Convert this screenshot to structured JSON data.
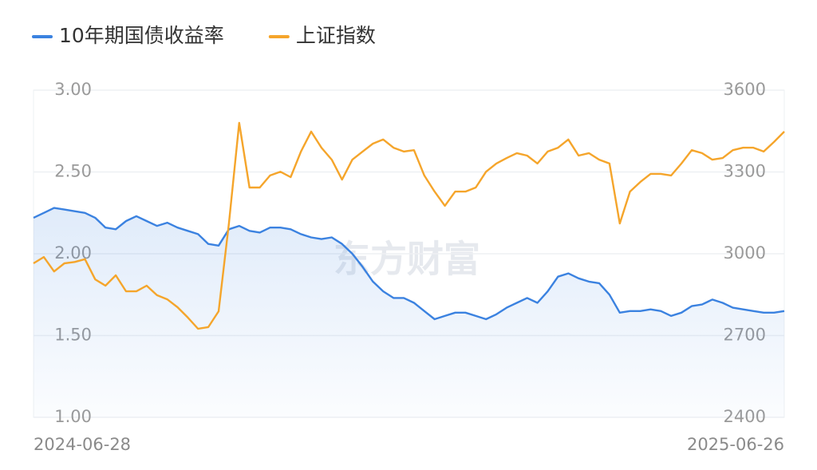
{
  "chart_data": {
    "type": "line",
    "watermark": "东方财富",
    "categories": [
      "2024-06-28",
      null,
      null,
      null,
      null,
      null,
      null,
      null,
      null,
      null,
      null,
      null,
      null,
      null,
      null,
      null,
      null,
      null,
      null,
      null,
      null,
      null,
      null,
      null,
      null,
      null,
      null,
      null,
      null,
      null,
      null,
      null,
      null,
      null,
      null,
      null,
      null,
      null,
      null,
      null,
      null,
      null,
      null,
      null,
      null,
      null,
      null,
      null,
      null,
      null,
      null,
      null,
      null,
      null,
      null,
      null,
      null,
      null,
      null,
      null,
      null,
      null,
      null,
      null,
      null,
      null,
      null,
      null,
      null,
      null,
      null,
      null,
      null,
      "2025-06-26"
    ],
    "series": [
      {
        "name": "10年期国债收益率",
        "color": "#3b82e0",
        "area": true,
        "values": [
          2.22,
          2.25,
          2.28,
          2.27,
          2.26,
          2.25,
          2.22,
          2.16,
          2.15,
          2.2,
          2.23,
          2.2,
          2.17,
          2.19,
          2.16,
          2.14,
          2.12,
          2.06,
          2.05,
          2.15,
          2.17,
          2.14,
          2.13,
          2.16,
          2.16,
          2.15,
          2.12,
          2.1,
          2.09,
          2.1,
          2.06,
          2.0,
          1.92,
          1.83,
          1.77,
          1.73,
          1.73,
          1.7,
          1.65,
          1.6,
          1.62,
          1.64,
          1.64,
          1.62,
          1.6,
          1.63,
          1.67,
          1.7,
          1.73,
          1.7,
          1.77,
          1.86,
          1.88,
          1.85,
          1.83,
          1.82,
          1.75,
          1.64,
          1.65,
          1.65,
          1.66,
          1.65,
          1.62,
          1.64,
          1.68,
          1.69,
          1.72,
          1.7,
          1.67,
          1.66,
          1.65,
          1.64,
          1.64,
          1.65
        ]
      },
      {
        "name": "上证指数",
        "color": "#f5a52b",
        "axis": "y2",
        "values": [
          2965,
          2988,
          2935,
          2965,
          2970,
          2980,
          2906,
          2883,
          2921,
          2862,
          2862,
          2883,
          2848,
          2833,
          2804,
          2766,
          2725,
          2731,
          2789,
          3111,
          3480,
          3243,
          3243,
          3287,
          3301,
          3281,
          3375,
          3448,
          3389,
          3345,
          3272,
          3345,
          3375,
          3404,
          3419,
          3389,
          3375,
          3380,
          3287,
          3228,
          3176,
          3228,
          3228,
          3243,
          3301,
          3331,
          3351,
          3369,
          3360,
          3331,
          3375,
          3389,
          3419,
          3360,
          3369,
          3345,
          3331,
          3111,
          3228,
          3263,
          3293,
          3293,
          3287,
          3331,
          3380,
          3369,
          3345,
          3351,
          3380,
          3389,
          3389,
          3375,
          3410,
          3448
        ]
      }
    ],
    "ylim": [
      1,
      3
    ],
    "yticks": [
      {
        "value": 1,
        "label": "1.00"
      },
      {
        "value": 1.5,
        "label": "1.50"
      },
      {
        "value": 2,
        "label": "2.00"
      },
      {
        "value": 2.5,
        "label": "2.50"
      },
      {
        "value": 3,
        "label": "3.00"
      }
    ],
    "y2lim": [
      2400,
      3600
    ],
    "y2ticks": [
      2400,
      2700,
      3000,
      3300,
      3600
    ],
    "grid": true,
    "legend": "top"
  }
}
